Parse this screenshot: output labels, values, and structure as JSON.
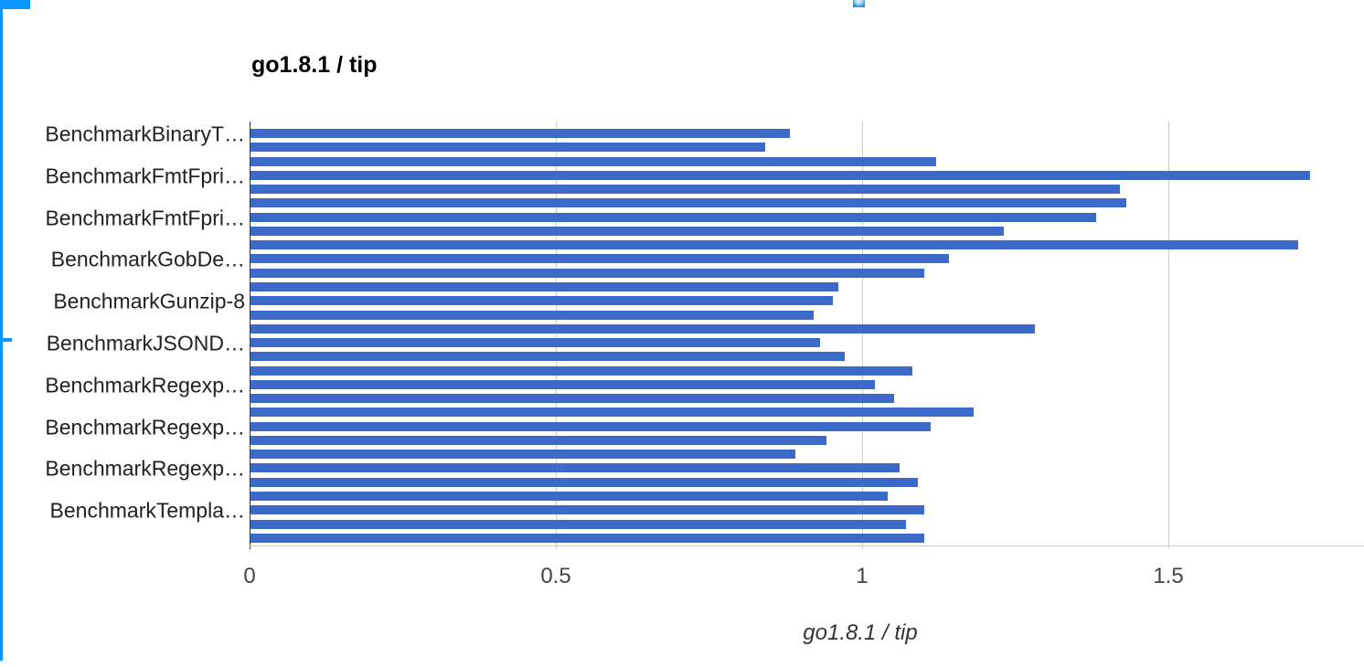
{
  "page": {
    "background": "#ffffff"
  },
  "selection_overlay": {
    "color": "#0a97ff",
    "parts": [
      "left-border-line",
      "top-left-handle",
      "top-middle-handle",
      "middle-left-handle"
    ]
  },
  "chart_data": {
    "type": "bar",
    "orientation": "horizontal",
    "title": "go1.8.1 / tip",
    "xlabel": "go1.8.1 / tip",
    "ylabel": "",
    "bar_color": "#3c6ac8",
    "grid_color": "#cccccc",
    "axis_line_color": "#333333",
    "grid": true,
    "legend_position": "none",
    "xlim": [
      0,
      1.82
    ],
    "x_ticks": [
      0,
      0.5,
      1,
      1.5
    ],
    "x_tick_labels": [
      "0",
      "0.5",
      "1",
      "1.5"
    ],
    "values": [
      0.88,
      0.84,
      1.12,
      1.73,
      1.42,
      1.43,
      1.38,
      1.23,
      1.71,
      1.14,
      1.1,
      0.96,
      0.95,
      0.92,
      1.28,
      0.93,
      0.97,
      1.08,
      1.02,
      1.05,
      1.18,
      1.11,
      0.94,
      0.89,
      1.06,
      1.09,
      1.04,
      1.1,
      1.07,
      1.1
    ],
    "visible_labels": [
      {
        "bar_index": 0,
        "text": "BenchmarkBinaryT…"
      },
      {
        "bar_index": 3,
        "text": "BenchmarkFmtFpri…"
      },
      {
        "bar_index": 6,
        "text": "BenchmarkFmtFpri…"
      },
      {
        "bar_index": 9,
        "text": "BenchmarkGobDe…"
      },
      {
        "bar_index": 12,
        "text": "BenchmarkGunzip-8"
      },
      {
        "bar_index": 15,
        "text": "BenchmarkJSOND…"
      },
      {
        "bar_index": 18,
        "text": "BenchmarkRegexp…"
      },
      {
        "bar_index": 21,
        "text": "BenchmarkRegexp…"
      },
      {
        "bar_index": 24,
        "text": "BenchmarkRegexp…"
      },
      {
        "bar_index": 27,
        "text": "BenchmarkTempla…"
      }
    ]
  }
}
